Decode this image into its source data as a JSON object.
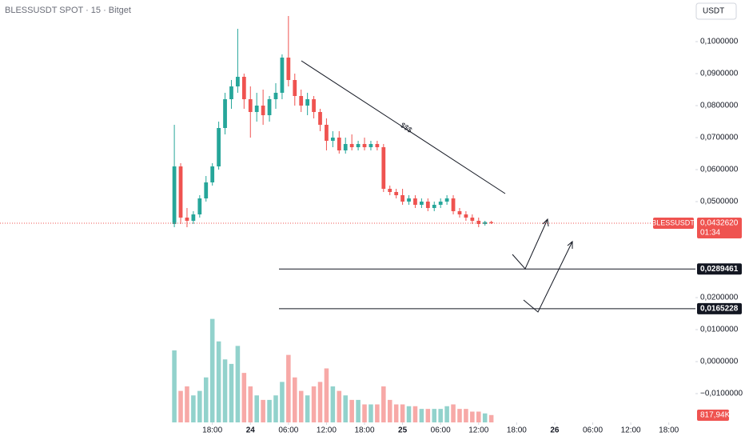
{
  "chart_data": {
    "type": "candlestick",
    "title": "BLESSUSDT SPOT · 15 · Bitget",
    "currency": "USDT",
    "symbol": "BLESSUSDT",
    "countdown": "01:34",
    "annotation": "$$$",
    "up_color": "#26a69a",
    "down_color": "#ef5350",
    "x": [
      -12,
      -11,
      -10,
      -9,
      -8,
      -7,
      -6,
      -5,
      -4,
      -3,
      -2,
      -1,
      0,
      1,
      2,
      3,
      4,
      5,
      6,
      7,
      8,
      9,
      10,
      11,
      12,
      13,
      14,
      15,
      16,
      17,
      18,
      19,
      20,
      21,
      22,
      23,
      24,
      25,
      26,
      27,
      28,
      29,
      30,
      31,
      32,
      33,
      34,
      35,
      36,
      37,
      38
    ],
    "open": [
      0.043,
      0.061,
      0.045,
      0.044,
      0.046,
      0.051,
      0.056,
      0.061,
      0.073,
      0.082,
      0.086,
      0.089,
      0.082,
      0.078,
      0.08,
      0.077,
      0.082,
      0.084,
      0.095,
      0.088,
      0.083,
      0.08,
      0.082,
      0.078,
      0.074,
      0.069,
      0.07,
      0.066,
      0.068,
      0.067,
      0.068,
      0.067,
      0.068,
      0.067,
      0.054,
      0.053,
      0.052,
      0.05,
      0.051,
      0.049,
      0.05,
      0.048,
      0.049,
      0.05,
      0.051,
      0.047,
      0.046,
      0.045,
      0.044,
      0.043,
      0.0436
    ],
    "high": [
      0.074,
      0.062,
      0.048,
      0.047,
      0.052,
      0.058,
      0.062,
      0.075,
      0.084,
      0.088,
      0.104,
      0.09,
      0.086,
      0.084,
      0.085,
      0.083,
      0.087,
      0.096,
      0.108,
      0.09,
      0.085,
      0.084,
      0.083,
      0.079,
      0.076,
      0.072,
      0.072,
      0.07,
      0.071,
      0.069,
      0.07,
      0.069,
      0.069,
      0.068,
      0.055,
      0.054,
      0.054,
      0.052,
      0.052,
      0.051,
      0.051,
      0.05,
      0.051,
      0.052,
      0.052,
      0.048,
      0.047,
      0.046,
      0.045,
      0.044,
      0.044
    ],
    "low": [
      0.042,
      0.043,
      0.042,
      0.043,
      0.045,
      0.05,
      0.055,
      0.06,
      0.071,
      0.079,
      0.084,
      0.079,
      0.07,
      0.075,
      0.074,
      0.075,
      0.079,
      0.082,
      0.086,
      0.08,
      0.078,
      0.077,
      0.076,
      0.072,
      0.066,
      0.067,
      0.065,
      0.065,
      0.066,
      0.066,
      0.066,
      0.066,
      0.066,
      0.053,
      0.052,
      0.051,
      0.049,
      0.049,
      0.048,
      0.048,
      0.047,
      0.047,
      0.048,
      0.049,
      0.046,
      0.045,
      0.044,
      0.043,
      0.042,
      0.0425,
      0.043
    ],
    "close": [
      0.061,
      0.045,
      0.044,
      0.046,
      0.051,
      0.056,
      0.061,
      0.073,
      0.082,
      0.086,
      0.089,
      0.082,
      0.078,
      0.08,
      0.077,
      0.082,
      0.084,
      0.095,
      0.088,
      0.083,
      0.08,
      0.082,
      0.078,
      0.074,
      0.069,
      0.07,
      0.066,
      0.068,
      0.067,
      0.068,
      0.067,
      0.068,
      0.067,
      0.054,
      0.053,
      0.052,
      0.05,
      0.051,
      0.049,
      0.05,
      0.048,
      0.049,
      0.05,
      0.051,
      0.047,
      0.046,
      0.045,
      0.044,
      0.043,
      0.0436,
      0.043262
    ],
    "volume": [
      8000,
      3500,
      4000,
      3000,
      3500,
      5000,
      11500,
      9000,
      7000,
      6500,
      8500,
      5500,
      4000,
      3000,
      2500,
      2500,
      3000,
      4500,
      7500,
      5000,
      3500,
      3000,
      4000,
      4500,
      6000,
      4000,
      3500,
      3000,
      2500,
      2500,
      2000,
      2000,
      2000,
      4000,
      2500,
      2000,
      2000,
      1800,
      1800,
      1500,
      1500,
      1500,
      1500,
      1800,
      2000,
      1500,
      1500,
      1200,
      1200,
      1000,
      817.94
    ],
    "volume_label": {
      "value": 817.94,
      "label": "817,94K"
    },
    "vlim": [
      0,
      12000
    ],
    "price": {
      "value": 0.043262,
      "label": "0,0432620"
    },
    "levels": [
      {
        "value": 0.0289461,
        "label": "0,0289461"
      },
      {
        "value": 0.0165228,
        "label": "0,0165228"
      }
    ],
    "xlim": [
      -39.5,
      70.2
    ],
    "ylim": [
      -0.019,
      0.113
    ],
    "xticks": [
      {
        "value": -6,
        "label": "18:00"
      },
      {
        "value": 0,
        "label": "24"
      },
      {
        "value": 6,
        "label": "06:00"
      },
      {
        "value": 12,
        "label": "12:00"
      },
      {
        "value": 18,
        "label": "18:00"
      },
      {
        "value": 24,
        "label": "25"
      },
      {
        "value": 30,
        "label": "06:00"
      },
      {
        "value": 36,
        "label": "12:00"
      },
      {
        "value": 42,
        "label": "18:00"
      },
      {
        "value": 48,
        "label": "26"
      },
      {
        "value": 54,
        "label": "06:00"
      },
      {
        "value": 60,
        "label": "12:00"
      },
      {
        "value": 66,
        "label": "18:00"
      }
    ],
    "yticks": [
      {
        "value": 0.1,
        "label": "0,1000000"
      },
      {
        "value": 0.09,
        "label": "0,0900000"
      },
      {
        "value": 0.08,
        "label": "0,0800000"
      },
      {
        "value": 0.07,
        "label": "0,0700000"
      },
      {
        "value": 0.06,
        "label": "0,0600000"
      },
      {
        "value": 0.05,
        "label": "0,0500000"
      },
      {
        "value": 0.02,
        "label": "0,0200000"
      },
      {
        "value": 0.01,
        "label": "0,0100000"
      },
      {
        "value": 0,
        "label": "0,0000000"
      },
      {
        "value": -0.01,
        "label": "−0,0100000"
      }
    ]
  }
}
